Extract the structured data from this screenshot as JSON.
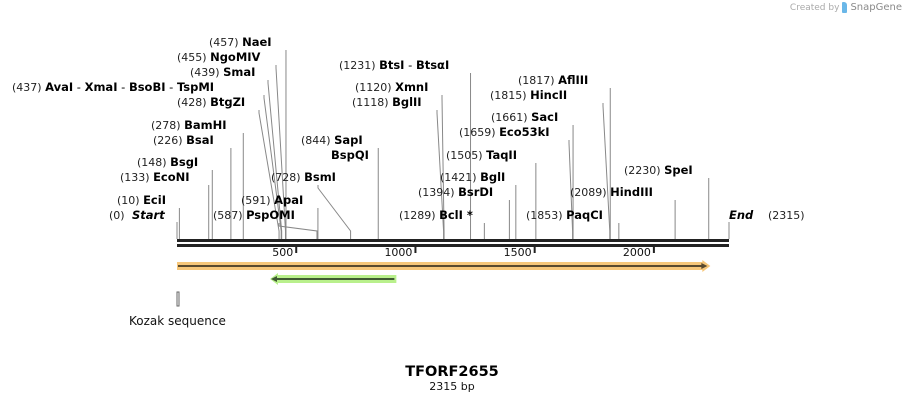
{
  "credit": {
    "prefix": "Created by",
    "brand": "SnapGene"
  },
  "sequence": {
    "name": "TFORF2655",
    "length_label": "2315 bp",
    "length": 2315
  },
  "ends": {
    "start": {
      "pos_label": "(0)",
      "label": "Start",
      "bp": 0
    },
    "end": {
      "pos_label": "(2315)",
      "label": "End",
      "bp": 2315
    }
  },
  "ruler": {
    "ticks": [
      {
        "bp": 500,
        "label": "500"
      },
      {
        "bp": 1000,
        "label": "1000"
      },
      {
        "bp": 1500,
        "label": "1500"
      },
      {
        "bp": 2000,
        "label": "2000"
      }
    ]
  },
  "sites": [
    {
      "id": "ecii",
      "pos_label": "(10)",
      "names": [
        "EciI"
      ],
      "bp": 10
    },
    {
      "id": "econi",
      "pos_label": "(133)",
      "names": [
        "EcoNI"
      ],
      "bp": 133
    },
    {
      "id": "bsgi",
      "pos_label": "(148)",
      "names": [
        "BsgI"
      ],
      "bp": 148
    },
    {
      "id": "bsai",
      "pos_label": "(226)",
      "names": [
        "BsaI"
      ],
      "bp": 226
    },
    {
      "id": "bamhi",
      "pos_label": "(278)",
      "names": [
        "BamHI"
      ],
      "bp": 278
    },
    {
      "id": "btgzi",
      "pos_label": "(428)",
      "names": [
        "BtgZI"
      ],
      "bp": 428
    },
    {
      "id": "avai",
      "pos_label": "(437)",
      "names": [
        "AvaI",
        "XmaI",
        "BsoBI",
        "TspMI"
      ],
      "bp": 437
    },
    {
      "id": "smai",
      "pos_label": "(439)",
      "names": [
        "SmaI"
      ],
      "bp": 439
    },
    {
      "id": "ngomiv",
      "pos_label": "(455)",
      "names": [
        "NgoMIV"
      ],
      "bp": 455
    },
    {
      "id": "naei",
      "pos_label": "(457)",
      "names": [
        "NaeI"
      ],
      "bp": 457
    },
    {
      "id": "pspomi",
      "pos_label": "(587)",
      "names": [
        "PspOMI"
      ],
      "bp": 587
    },
    {
      "id": "apai",
      "pos_label": "(591)",
      "names": [
        "ApaI"
      ],
      "bp": 591
    },
    {
      "id": "bsmi",
      "pos_label": "(728)",
      "names": [
        "BsmI"
      ],
      "bp": 728
    },
    {
      "id": "sapi",
      "pos_label": "(844)",
      "names": [
        "SapI"
      ],
      "bp": 844
    },
    {
      "id": "bspqi",
      "pos_label": "",
      "names": [
        "BspQI"
      ],
      "bp": 844
    },
    {
      "id": "bglii",
      "pos_label": "(1118)",
      "names": [
        "BglII"
      ],
      "bp": 1118
    },
    {
      "id": "xmni",
      "pos_label": "(1120)",
      "names": [
        "XmnI"
      ],
      "bp": 1120
    },
    {
      "id": "btsi",
      "pos_label": "(1231)",
      "names": [
        "BtsI",
        "BtsαI"
      ],
      "bp": 1231
    },
    {
      "id": "bcli",
      "pos_label": "(1289)",
      "names": [
        "BclI *"
      ],
      "bp": 1289
    },
    {
      "id": "bsrdi",
      "pos_label": "(1394)",
      "names": [
        "BsrDI"
      ],
      "bp": 1394
    },
    {
      "id": "bgli",
      "pos_label": "(1421)",
      "names": [
        "BglI"
      ],
      "bp": 1421
    },
    {
      "id": "taqii",
      "pos_label": "(1505)",
      "names": [
        "TaqII"
      ],
      "bp": 1505
    },
    {
      "id": "eco53ki",
      "pos_label": "(1659)",
      "names": [
        "Eco53kI"
      ],
      "bp": 1659
    },
    {
      "id": "saci",
      "pos_label": "(1661)",
      "names": [
        "SacI"
      ],
      "bp": 1661
    },
    {
      "id": "hincii",
      "pos_label": "(1815)",
      "names": [
        "HincII"
      ],
      "bp": 1815
    },
    {
      "id": "afliii",
      "pos_label": "(1817)",
      "names": [
        "AflIII"
      ],
      "bp": 1817
    },
    {
      "id": "paqci",
      "pos_label": "(1853)",
      "names": [
        "PaqCI"
      ],
      "bp": 1853
    },
    {
      "id": "hindiii",
      "pos_label": "(2089)",
      "names": [
        "HindIII"
      ],
      "bp": 2089
    },
    {
      "id": "spei",
      "pos_label": "(2230)",
      "names": [
        "SpeI"
      ],
      "bp": 2230
    }
  ],
  "features": [
    {
      "id": "orf-main",
      "start": 0,
      "end": 2220,
      "direction": "forward",
      "fill": "#f7c77a",
      "stroke": "#5a4a2e"
    },
    {
      "id": "orf-rev",
      "start": 390,
      "end": 920,
      "direction": "reverse",
      "fill": "#b9f08c",
      "stroke": "#3f5a32"
    },
    {
      "id": "kozak",
      "label": "Kozak sequence",
      "start": 0,
      "end": 10
    }
  ],
  "colors": {
    "backbone": "#222222",
    "site_line": "#888888"
  }
}
